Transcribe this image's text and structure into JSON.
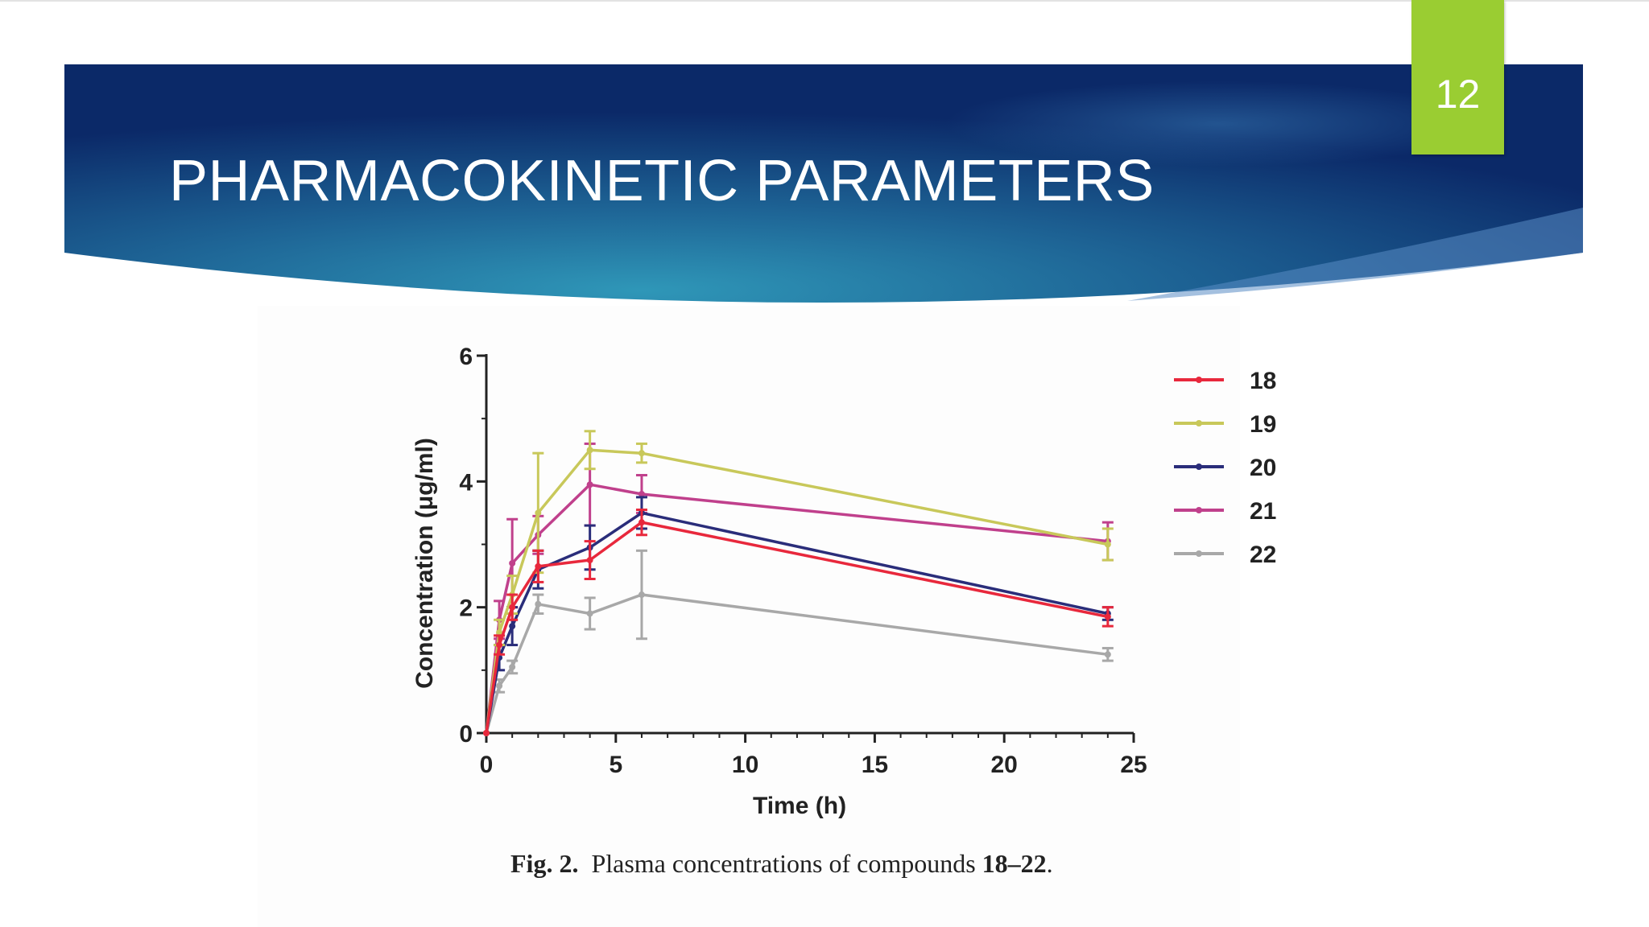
{
  "slide": {
    "title": "PHARMACOKINETIC PARAMETERS",
    "number": "12",
    "accent_color": "#9acd32",
    "banner_colors": [
      "#0c2c6e",
      "#2b8ab0"
    ]
  },
  "caption": {
    "prefix": "Fig. 2.",
    "text": "Plasma concentrations of compounds",
    "compounds": "18–22",
    "suffix": "."
  },
  "chart_data": {
    "type": "line",
    "xlabel": "Time (h)",
    "ylabel": "Concentration (μg/ml)",
    "xlim": [
      0,
      25
    ],
    "ylim": [
      0,
      6
    ],
    "xticks": [
      0,
      5,
      10,
      15,
      20,
      25
    ],
    "yticks": [
      0,
      2,
      4,
      6
    ],
    "grid": false,
    "legend_position": "right",
    "x": [
      0,
      0.5,
      1,
      2,
      4,
      6,
      24
    ],
    "series": [
      {
        "name": "18",
        "color": "#e8283c",
        "values": [
          0,
          1.4,
          2.0,
          2.65,
          2.75,
          3.35,
          1.85
        ],
        "errors": [
          0,
          0.15,
          0.2,
          0.25,
          0.3,
          0.2,
          0.15
        ]
      },
      {
        "name": "19",
        "color": "#c8c85a",
        "values": [
          0,
          1.6,
          2.2,
          3.5,
          4.5,
          4.45,
          3.0
        ],
        "errors": [
          0,
          0.2,
          0.3,
          0.95,
          0.3,
          0.15,
          0.25
        ]
      },
      {
        "name": "20",
        "color": "#2a2d7a",
        "values": [
          0,
          1.2,
          1.7,
          2.6,
          2.95,
          3.5,
          1.9
        ],
        "errors": [
          0,
          0.2,
          0.3,
          0.3,
          0.35,
          0.25,
          0.1
        ]
      },
      {
        "name": "21",
        "color": "#c0408c",
        "values": [
          0,
          1.8,
          2.7,
          3.15,
          3.95,
          3.8,
          3.05
        ],
        "errors": [
          0,
          0.3,
          0.7,
          0.3,
          0.65,
          0.3,
          0.3
        ]
      },
      {
        "name": "22",
        "color": "#a8a8a8",
        "values": [
          0,
          0.75,
          1.05,
          2.05,
          1.9,
          2.2,
          1.25
        ],
        "errors": [
          0,
          0.1,
          0.1,
          0.15,
          0.25,
          0.7,
          0.1
        ]
      }
    ]
  }
}
